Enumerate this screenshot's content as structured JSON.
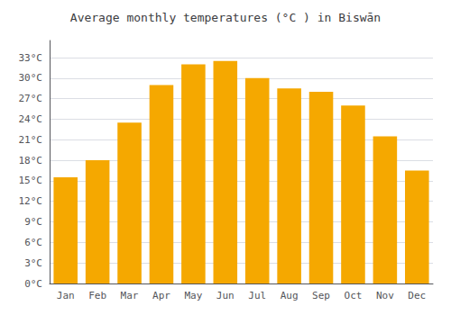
{
  "chart_data": {
    "type": "bar",
    "title": "Average monthly temperatures (°C ) in Biswān",
    "categories": [
      "Jan",
      "Feb",
      "Mar",
      "Apr",
      "May",
      "Jun",
      "Jul",
      "Aug",
      "Sep",
      "Oct",
      "Nov",
      "Dec"
    ],
    "values": [
      15.5,
      18.0,
      23.5,
      29.0,
      32.0,
      32.5,
      30.0,
      28.5,
      28.0,
      26.0,
      21.5,
      16.5
    ],
    "color": "#F5A800",
    "ylim": [
      0,
      35.5
    ],
    "yticks": [
      {
        "value": 0,
        "label": "0°C"
      },
      {
        "value": 3,
        "label": "3°C"
      },
      {
        "value": 6,
        "label": "6°C"
      },
      {
        "value": 9,
        "label": "9°C"
      },
      {
        "value": 12,
        "label": "12°C"
      },
      {
        "value": 15,
        "label": "15°C"
      },
      {
        "value": 18,
        "label": "18°C"
      },
      {
        "value": 21,
        "label": "21°C"
      },
      {
        "value": 24,
        "label": "24°C"
      },
      {
        "value": 27,
        "label": "27°C"
      },
      {
        "value": 30,
        "label": "30°C"
      },
      {
        "value": 33,
        "label": "33°C"
      }
    ],
    "grid": true
  }
}
